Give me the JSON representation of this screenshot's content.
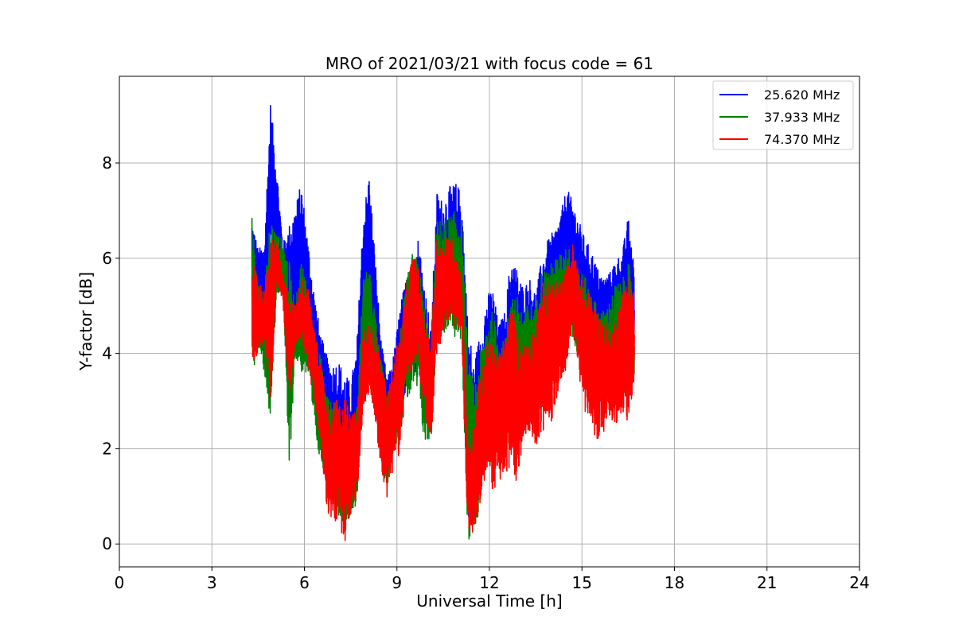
{
  "chart_data": {
    "type": "line",
    "title": "MRO of 2021/03/21 with focus code = 61",
    "xlabel": "Universal Time [h]",
    "ylabel": "Y-factor [dB]",
    "xlim": [
      0,
      24
    ],
    "ylim": [
      -0.48,
      9.82
    ],
    "x_ticks": [
      0,
      3,
      6,
      9,
      12,
      15,
      18,
      21,
      24
    ],
    "y_ticks": [
      0,
      2,
      4,
      6,
      8
    ],
    "grid": true,
    "legend_position": "top-right",
    "series": [
      {
        "name": "25.620 MHz",
        "color": "#0000ff",
        "data_unit": "hours, dB",
        "envelope": [
          [
            4.3,
            4.5,
            6.9
          ],
          [
            4.5,
            4.6,
            6.2
          ],
          [
            4.7,
            4.6,
            6.3
          ],
          [
            4.9,
            6.2,
            9.3
          ],
          [
            5.1,
            5.8,
            8.0
          ],
          [
            5.3,
            5.4,
            6.3
          ],
          [
            5.5,
            4.2,
            6.7
          ],
          [
            5.7,
            4.5,
            7.1
          ],
          [
            5.9,
            4.6,
            7.6
          ],
          [
            6.1,
            4.0,
            6.5
          ],
          [
            6.3,
            3.5,
            5.4
          ],
          [
            6.5,
            2.5,
            4.5
          ],
          [
            6.7,
            1.8,
            4.0
          ],
          [
            6.9,
            1.2,
            3.8
          ],
          [
            7.1,
            0.8,
            3.9
          ],
          [
            7.3,
            0.9,
            3.6
          ],
          [
            7.5,
            0.7,
            3.4
          ],
          [
            7.7,
            1.3,
            4.2
          ],
          [
            7.9,
            4.5,
            6.9
          ],
          [
            8.1,
            4.8,
            7.8
          ],
          [
            8.3,
            3.8,
            6.0
          ],
          [
            8.5,
            2.2,
            4.2
          ],
          [
            8.7,
            1.5,
            3.5
          ],
          [
            8.9,
            2.5,
            4.0
          ],
          [
            9.1,
            2.6,
            5.0
          ],
          [
            9.3,
            3.2,
            5.6
          ],
          [
            9.5,
            3.5,
            5.8
          ],
          [
            9.7,
            3.6,
            6.5
          ],
          [
            9.9,
            2.5,
            5.5
          ],
          [
            10.1,
            2.2,
            4.5
          ],
          [
            10.3,
            4.6,
            7.4
          ],
          [
            10.5,
            4.8,
            7.2
          ],
          [
            10.7,
            4.9,
            7.5
          ],
          [
            10.9,
            4.5,
            7.6
          ],
          [
            11.1,
            4.8,
            7.4
          ],
          [
            11.3,
            0.4,
            4.7
          ],
          [
            11.5,
            0.3,
            3.8
          ],
          [
            11.7,
            1.0,
            4.5
          ],
          [
            11.9,
            2.2,
            5.2
          ],
          [
            12.1,
            3.0,
            5.4
          ],
          [
            12.3,
            2.6,
            4.6
          ],
          [
            12.5,
            2.3,
            4.9
          ],
          [
            12.7,
            3.1,
            6.1
          ],
          [
            12.9,
            2.5,
            5.8
          ],
          [
            13.1,
            3.2,
            5.4
          ],
          [
            13.3,
            3.4,
            5.6
          ],
          [
            13.5,
            3.0,
            5.3
          ],
          [
            13.7,
            3.6,
            6.0
          ],
          [
            13.9,
            4.0,
            6.4
          ],
          [
            14.1,
            4.2,
            6.6
          ],
          [
            14.3,
            5.0,
            6.9
          ],
          [
            14.5,
            5.4,
            7.5
          ],
          [
            14.7,
            5.3,
            7.2
          ],
          [
            14.9,
            5.0,
            6.8
          ],
          [
            15.1,
            4.4,
            6.4
          ],
          [
            15.3,
            4.0,
            6.2
          ],
          [
            15.5,
            4.0,
            5.8
          ],
          [
            15.7,
            4.1,
            5.6
          ],
          [
            15.9,
            4.2,
            5.7
          ],
          [
            16.1,
            4.3,
            6.0
          ],
          [
            16.3,
            4.2,
            6.1
          ],
          [
            16.5,
            3.9,
            6.9
          ],
          [
            16.7,
            3.8,
            6.0
          ]
        ]
      },
      {
        "name": "37.933 MHz",
        "color": "#008000",
        "data_unit": "hours, dB",
        "envelope": [
          [
            4.3,
            3.6,
            6.9
          ],
          [
            4.5,
            4.0,
            5.5
          ],
          [
            4.7,
            3.6,
            5.3
          ],
          [
            4.9,
            2.5,
            7.0
          ],
          [
            5.1,
            5.2,
            6.5
          ],
          [
            5.3,
            5.3,
            6.4
          ],
          [
            5.5,
            1.4,
            6.0
          ],
          [
            5.7,
            3.9,
            5.0
          ],
          [
            5.9,
            3.6,
            6.0
          ],
          [
            6.1,
            3.5,
            5.5
          ],
          [
            6.3,
            2.5,
            4.5
          ],
          [
            6.5,
            1.7,
            4.0
          ],
          [
            6.7,
            1.5,
            3.5
          ],
          [
            6.9,
            0.9,
            3.0
          ],
          [
            7.1,
            0.6,
            3.0
          ],
          [
            7.3,
            0.4,
            2.6
          ],
          [
            7.5,
            0.6,
            2.6
          ],
          [
            7.7,
            0.8,
            2.9
          ],
          [
            7.9,
            3.5,
            5.6
          ],
          [
            8.1,
            3.8,
            5.8
          ],
          [
            8.3,
            3.0,
            4.8
          ],
          [
            8.5,
            1.6,
            3.8
          ],
          [
            8.7,
            1.2,
            3.2
          ],
          [
            8.9,
            2.0,
            3.6
          ],
          [
            9.1,
            2.3,
            4.5
          ],
          [
            9.3,
            2.9,
            5.5
          ],
          [
            9.5,
            3.2,
            6.1
          ],
          [
            9.7,
            3.1,
            6.0
          ],
          [
            9.9,
            2.0,
            5.0
          ],
          [
            10.1,
            2.2,
            4.2
          ],
          [
            10.3,
            4.3,
            6.8
          ],
          [
            10.5,
            4.4,
            6.8
          ],
          [
            10.7,
            4.5,
            6.9
          ],
          [
            10.9,
            4.3,
            7.0
          ],
          [
            11.1,
            4.2,
            6.8
          ],
          [
            11.3,
            0.0,
            4.0
          ],
          [
            11.5,
            0.3,
            3.3
          ],
          [
            11.7,
            0.8,
            4.0
          ],
          [
            11.9,
            1.8,
            4.7
          ],
          [
            12.1,
            2.6,
            4.9
          ],
          [
            12.3,
            2.2,
            4.2
          ],
          [
            12.5,
            1.9,
            4.3
          ],
          [
            12.7,
            2.6,
            5.4
          ],
          [
            12.9,
            2.1,
            5.2
          ],
          [
            13.1,
            2.8,
            4.9
          ],
          [
            13.3,
            2.9,
            5.1
          ],
          [
            13.5,
            2.5,
            5.0
          ],
          [
            13.7,
            3.0,
            5.8
          ],
          [
            13.9,
            3.3,
            5.8
          ],
          [
            14.1,
            3.6,
            6.0
          ],
          [
            14.3,
            4.0,
            6.1
          ],
          [
            14.5,
            4.4,
            6.3
          ],
          [
            14.7,
            4.3,
            6.1
          ],
          [
            14.9,
            3.9,
            5.8
          ],
          [
            15.1,
            3.3,
            5.6
          ],
          [
            15.3,
            3.0,
            5.3
          ],
          [
            15.5,
            3.0,
            5.0
          ],
          [
            15.7,
            3.2,
            4.9
          ],
          [
            15.9,
            3.4,
            5.1
          ],
          [
            16.1,
            3.4,
            5.5
          ],
          [
            16.3,
            3.3,
            5.5
          ],
          [
            16.5,
            3.0,
            6.0
          ],
          [
            16.7,
            3.4,
            4.9
          ]
        ]
      },
      {
        "name": "74.370 MHz",
        "color": "#ff0000",
        "data_unit": "hours, dB",
        "envelope": [
          [
            4.3,
            3.8,
            6.1
          ],
          [
            4.5,
            4.0,
            5.6
          ],
          [
            4.7,
            4.2,
            5.2
          ],
          [
            4.9,
            2.8,
            6.5
          ],
          [
            5.1,
            5.4,
            6.4
          ],
          [
            5.3,
            5.1,
            5.6
          ],
          [
            5.5,
            3.0,
            5.3
          ],
          [
            5.7,
            4.2,
            5.0
          ],
          [
            5.9,
            4.3,
            5.6
          ],
          [
            6.1,
            3.8,
            5.5
          ],
          [
            6.3,
            3.0,
            4.6
          ],
          [
            6.5,
            2.2,
            4.0
          ],
          [
            6.7,
            0.8,
            3.2
          ],
          [
            6.9,
            0.3,
            2.9
          ],
          [
            7.1,
            0.5,
            3.2
          ],
          [
            7.3,
            0.0,
            3.1
          ],
          [
            7.5,
            0.6,
            2.7
          ],
          [
            7.7,
            0.9,
            2.8
          ],
          [
            7.9,
            2.7,
            4.5
          ],
          [
            8.1,
            3.2,
            4.6
          ],
          [
            8.3,
            2.5,
            4.5
          ],
          [
            8.5,
            1.5,
            3.8
          ],
          [
            8.7,
            0.9,
            3.1
          ],
          [
            8.9,
            1.7,
            4.0
          ],
          [
            9.1,
            1.9,
            4.4
          ],
          [
            9.3,
            3.5,
            5.4
          ],
          [
            9.5,
            3.5,
            6.1
          ],
          [
            9.7,
            3.7,
            5.8
          ],
          [
            9.9,
            2.8,
            4.6
          ],
          [
            10.1,
            1.8,
            4.4
          ],
          [
            10.3,
            3.9,
            6.5
          ],
          [
            10.5,
            4.4,
            6.3
          ],
          [
            10.7,
            4.7,
            6.6
          ],
          [
            10.9,
            4.5,
            6.2
          ],
          [
            11.1,
            4.5,
            5.6
          ],
          [
            11.3,
            0.2,
            2.0
          ],
          [
            11.5,
            0.1,
            2.5
          ],
          [
            11.7,
            0.8,
            3.6
          ],
          [
            11.9,
            1.5,
            4.3
          ],
          [
            12.1,
            1.1,
            4.2
          ],
          [
            12.3,
            1.3,
            4.0
          ],
          [
            12.5,
            1.3,
            4.4
          ],
          [
            12.7,
            1.6,
            5.0
          ],
          [
            12.9,
            1.2,
            4.5
          ],
          [
            13.1,
            2.2,
            4.2
          ],
          [
            13.3,
            2.4,
            4.4
          ],
          [
            13.5,
            2.0,
            4.6
          ],
          [
            13.7,
            2.4,
            5.5
          ],
          [
            13.9,
            2.2,
            5.5
          ],
          [
            14.1,
            2.8,
            5.6
          ],
          [
            14.3,
            3.4,
            5.5
          ],
          [
            14.5,
            3.7,
            5.8
          ],
          [
            14.7,
            4.5,
            6.3
          ],
          [
            14.9,
            3.5,
            5.8
          ],
          [
            15.1,
            2.8,
            5.3
          ],
          [
            15.3,
            2.4,
            5.3
          ],
          [
            15.5,
            2.2,
            4.8
          ],
          [
            15.7,
            2.3,
            4.8
          ],
          [
            15.9,
            2.5,
            4.5
          ],
          [
            16.1,
            2.5,
            4.8
          ],
          [
            16.3,
            2.8,
            5.3
          ],
          [
            16.5,
            2.5,
            5.8
          ],
          [
            16.7,
            3.4,
            5.4
          ]
        ]
      }
    ]
  }
}
